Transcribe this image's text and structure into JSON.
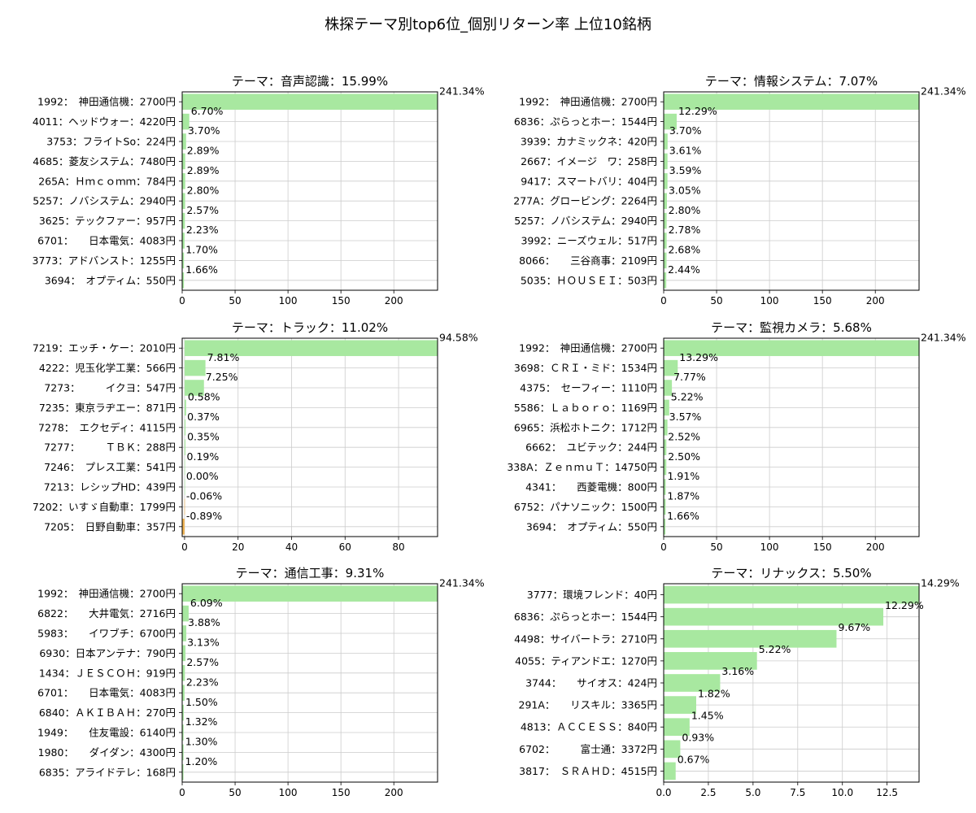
{
  "figure": {
    "suptitle": "株探テーマ別top6位_個別リターン率 上位10銘柄"
  },
  "colors": {
    "positive_bar": "#a8e8a0",
    "negative_bar": "#f0b454",
    "grid": "#cccccc",
    "axis": "#000000"
  },
  "chart_data": [
    {
      "type": "bar",
      "orientation": "horizontal",
      "title": "テーマ：音声認識：15.99%",
      "categories": [
        "1992：　神田通信機：2700円",
        "4011：ヘッドウォー：4220円",
        "3753：フライトSo：224円",
        "4685：菱友システム：7480円",
        "265A：Ｈｍｃｏｍｍ：784円",
        "5257：ノバシステム：2940円",
        "3625：テックファー：957円",
        "6701：　　日本電気：4083円",
        "3773：アドバンスト：1255円",
        "3694：　オプティム：550円"
      ],
      "values": [
        241.34,
        6.7,
        3.7,
        2.89,
        2.89,
        2.8,
        2.57,
        2.23,
        1.7,
        1.66
      ],
      "value_labels": [
        "241.34%",
        "6.70%",
        "3.70%",
        "2.89%",
        "2.89%",
        "2.80%",
        "2.57%",
        "2.23%",
        "1.70%",
        "1.66%"
      ],
      "xlim": [
        0,
        241.34
      ],
      "xticks": [
        0,
        50,
        100,
        150,
        200
      ],
      "xtick_labels": [
        "0",
        "50",
        "100",
        "150",
        "200"
      ],
      "grid": true
    },
    {
      "type": "bar",
      "orientation": "horizontal",
      "title": "テーマ：情報システム：7.07%",
      "categories": [
        "1992：　神田通信機：2700円",
        "6836：ぷらっとホー：1544円",
        "3939：カナミックネ：420円",
        "2667：イメージ　ワ：258円",
        "9417：スマートバリ：404円",
        "277A：グロービング：2264円",
        "5257：ノバシステム：2940円",
        "3992：ニーズウェル：517円",
        "8066：　　三谷商事：2109円",
        "5035：ＨＯＵＳＥＩ：503円"
      ],
      "values": [
        241.34,
        12.29,
        3.7,
        3.61,
        3.59,
        3.05,
        2.8,
        2.78,
        2.68,
        2.44
      ],
      "value_labels": [
        "241.34%",
        "12.29%",
        "3.70%",
        "3.61%",
        "3.59%",
        "3.05%",
        "2.80%",
        "2.78%",
        "2.68%",
        "2.44%"
      ],
      "xlim": [
        0,
        241.34
      ],
      "xticks": [
        0,
        50,
        100,
        150,
        200
      ],
      "xtick_labels": [
        "0",
        "50",
        "100",
        "150",
        "200"
      ],
      "grid": true
    },
    {
      "type": "bar",
      "orientation": "horizontal",
      "title": "テーマ：トラック：11.02%",
      "categories": [
        "7219：エッチ・ケー：2010円",
        "4222：児玉化学工業：566円",
        "7273：　　　イクヨ：547円",
        "7235：東京ラヂエー：871円",
        "7278：　エクセディ：4115円",
        "7277：　　　ＴＢＫ：288円",
        "7246：　プレス工業：541円",
        "7213：レシップHD：439円",
        "7202：いすゞ自動車：1799円",
        "7205：　日野自動車：357円"
      ],
      "values": [
        94.58,
        7.81,
        7.25,
        0.58,
        0.37,
        0.35,
        0.19,
        0.0,
        -0.06,
        -0.89
      ],
      "value_labels": [
        "94.58%",
        "7.81%",
        "7.25%",
        "0.58%",
        "0.37%",
        "0.35%",
        "0.19%",
        "0.00%",
        "-0.06%",
        "-0.89%"
      ],
      "xlim": [
        -0.89,
        94.58
      ],
      "xticks": [
        0,
        20,
        40,
        60,
        80
      ],
      "xtick_labels": [
        "0",
        "20",
        "40",
        "60",
        "80"
      ],
      "grid": true
    },
    {
      "type": "bar",
      "orientation": "horizontal",
      "title": "テーマ：監視カメラ：5.68%",
      "categories": [
        "1992：　神田通信機：2700円",
        "3698：ＣＲＩ・ミド：1534円",
        "4375：　セーフィー：1110円",
        "5586：Ｌａｂｏｒｏ：1169円",
        "6965：浜松ホトニク：1712円",
        "6662：　ユビテック：244円",
        "338A：ＺｅｎｍｕＴ：14750円",
        "4341：　　西菱電機：800円",
        "6752：パナソニック：1500円",
        "3694：　オプティム：550円"
      ],
      "values": [
        241.34,
        13.29,
        7.77,
        5.22,
        3.57,
        2.52,
        2.5,
        1.91,
        1.87,
        1.66
      ],
      "value_labels": [
        "241.34%",
        "13.29%",
        "7.77%",
        "5.22%",
        "3.57%",
        "2.52%",
        "2.50%",
        "1.91%",
        "1.87%",
        "1.66%"
      ],
      "xlim": [
        0,
        241.34
      ],
      "xticks": [
        0,
        50,
        100,
        150,
        200
      ],
      "xtick_labels": [
        "0",
        "50",
        "100",
        "150",
        "200"
      ],
      "grid": true
    },
    {
      "type": "bar",
      "orientation": "horizontal",
      "title": "テーマ：通信工事：9.31%",
      "categories": [
        "1992：　神田通信機：2700円",
        "6822：　　大井電気：2716円",
        "5983：　　イワブチ：6700円",
        "6930：日本アンテナ：790円",
        "1434：ＪＥＳＣＯＨ：919円",
        "6701：　　日本電気：4083円",
        "6840：ＡＫＩＢＡＨ：270円",
        "1949：　　住友電設：6140円",
        "1980：　　ダイダン：4300円",
        "6835：アライドテレ：168円"
      ],
      "values": [
        241.34,
        6.09,
        3.88,
        3.13,
        2.57,
        2.23,
        1.5,
        1.32,
        1.3,
        1.2
      ],
      "value_labels": [
        "241.34%",
        "6.09%",
        "3.88%",
        "3.13%",
        "2.57%",
        "2.23%",
        "1.50%",
        "1.32%",
        "1.30%",
        "1.20%"
      ],
      "xlim": [
        0,
        241.34
      ],
      "xticks": [
        0,
        50,
        100,
        150,
        200
      ],
      "xtick_labels": [
        "0",
        "50",
        "100",
        "150",
        "200"
      ],
      "grid": true
    },
    {
      "type": "bar",
      "orientation": "horizontal",
      "title": "テーマ：リナックス：5.50%",
      "categories": [
        "3777：環境フレンド：40円",
        "6836：ぷらっとホー：1544円",
        "4498：サイバートラ：2710円",
        "4055：ティアンドエ：1270円",
        "3744：　　サイオス：424円",
        "291A：　　リスキル：3365円",
        "4813：ＡＣＣＥＳＳ：840円",
        "6702：　　　富士通：3372円",
        "3817：　ＳＲＡＨＤ：4515円"
      ],
      "values": [
        14.29,
        12.29,
        9.67,
        5.22,
        3.16,
        1.82,
        1.45,
        0.93,
        0.67
      ],
      "value_labels": [
        "14.29%",
        "12.29%",
        "9.67%",
        "5.22%",
        "3.16%",
        "1.82%",
        "1.45%",
        "0.93%",
        "0.67%"
      ],
      "xlim": [
        0,
        14.29
      ],
      "xticks": [
        0,
        2.5,
        5,
        7.5,
        10,
        12.5
      ],
      "xtick_labels": [
        "0.0",
        "2.5",
        "5.0",
        "7.5",
        "10.0",
        "12.5"
      ],
      "grid": true
    }
  ]
}
